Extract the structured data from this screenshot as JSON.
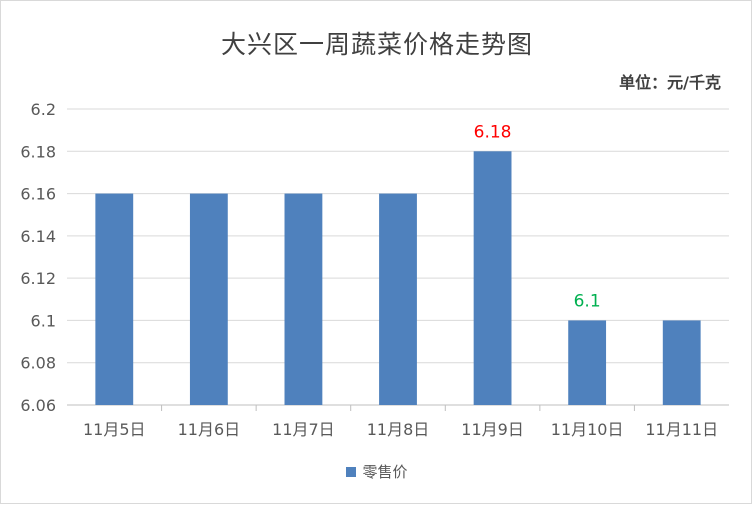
{
  "chart_data": {
    "type": "bar",
    "title": "大兴区一周蔬菜价格走势图",
    "unit_label": "单位：元/千克",
    "categories": [
      "11月5日",
      "11月6日",
      "11月7日",
      "11月8日",
      "11月9日",
      "11月10日",
      "11月11日"
    ],
    "series": [
      {
        "name": "零售价",
        "values": [
          6.16,
          6.16,
          6.16,
          6.16,
          6.18,
          6.1,
          6.1
        ],
        "color": "#4f81bd"
      }
    ],
    "ylim": [
      6.06,
      6.2
    ],
    "yticks": [
      "6.2",
      "6.18",
      "6.16",
      "6.14",
      "6.12",
      "6.1",
      "6.08",
      "6.06"
    ],
    "data_labels": [
      {
        "index": 4,
        "text": "6.18",
        "color": "#ff0000"
      },
      {
        "index": 5,
        "text": "6.1",
        "color": "#00b050"
      }
    ],
    "grid": true,
    "legend_position": "bottom"
  }
}
